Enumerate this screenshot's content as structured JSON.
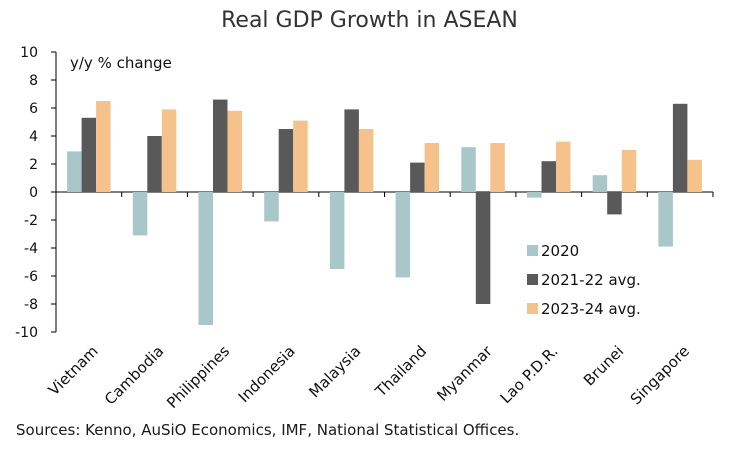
{
  "chart_data": {
    "type": "bar",
    "title": "Real GDP Growth in ASEAN",
    "ylabel": "y/y % change",
    "xlabel": "",
    "ylim": [
      -10,
      10
    ],
    "yticks": [
      -10,
      -8,
      -6,
      -4,
      -2,
      0,
      2,
      4,
      6,
      8,
      10
    ],
    "categories": [
      "Vietnam",
      "Cambodia",
      "Philippines",
      "Indonesia",
      "Malaysia",
      "Thailand",
      "Myanmar",
      "Lao P.D.R.",
      "Brunei",
      "Singapore"
    ],
    "series": [
      {
        "name": "2020",
        "color": "#a9c6c9",
        "values": [
          2.9,
          -3.1,
          -9.5,
          -2.1,
          -5.5,
          -6.1,
          3.2,
          -0.4,
          1.2,
          -3.9
        ]
      },
      {
        "name": "2021-22 avg.",
        "color": "#595959",
        "values": [
          5.3,
          4.0,
          6.6,
          4.5,
          5.9,
          2.1,
          -8.0,
          2.2,
          -1.6,
          6.3
        ]
      },
      {
        "name": "2023-24 avg.",
        "color": "#f5c28c",
        "values": [
          6.5,
          5.9,
          5.8,
          5.1,
          4.5,
          3.5,
          3.5,
          3.6,
          3.0,
          2.3
        ]
      }
    ],
    "grid": false,
    "legend_position": "bottom-right"
  },
  "source": "Sources: Kenno, AuSiO Economics, IMF, National Statistical Offices."
}
